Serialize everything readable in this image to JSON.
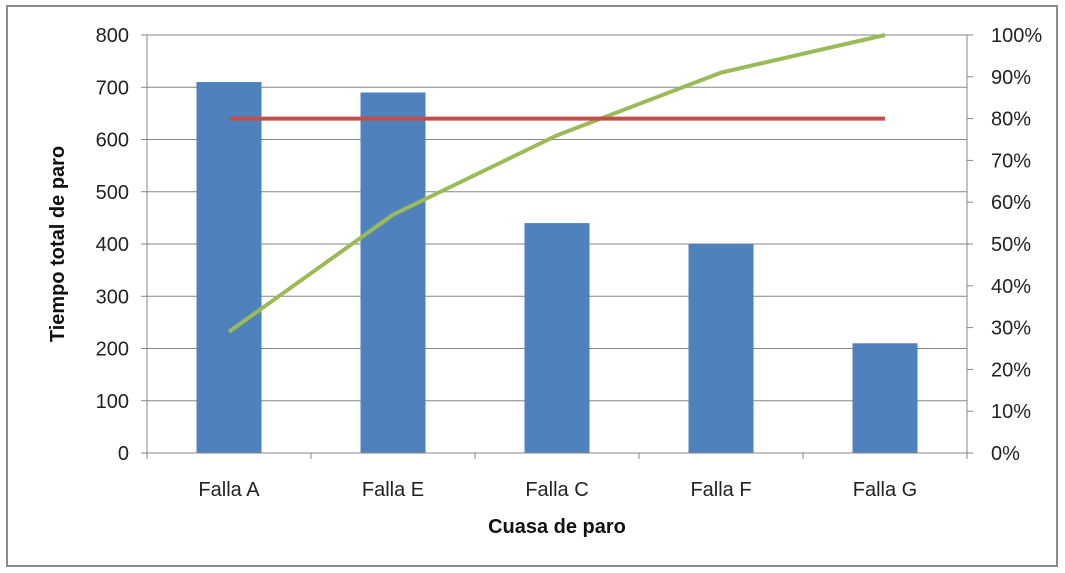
{
  "chart_data": {
    "type": "bar",
    "categories": [
      "Falla A",
      "Falla E",
      "Falla C",
      "Falla F",
      "Falla G"
    ],
    "series": [
      {
        "kind": "bar",
        "axis": "left",
        "values": [
          710,
          690,
          440,
          400,
          210
        ],
        "color": "#4f81bd"
      },
      {
        "kind": "line",
        "axis": "right",
        "values": [
          29,
          57,
          76,
          91,
          100
        ],
        "color": "#9bbb59"
      },
      {
        "kind": "line",
        "axis": "right",
        "values": [
          80,
          80,
          80,
          80,
          80
        ],
        "color": "#c0504d"
      }
    ],
    "xlabel": "Cuasa de paro",
    "ylabel": "Tiempo total de paro",
    "ylim": [
      0,
      800
    ],
    "y_ticks": [
      "0",
      "100",
      "200",
      "300",
      "400",
      "500",
      "600",
      "700",
      "800"
    ],
    "y2lim": [
      0,
      100
    ],
    "y2_ticks": [
      "0%",
      "10%",
      "20%",
      "30%",
      "40%",
      "50%",
      "60%",
      "70%",
      "80%",
      "90%",
      "100%"
    ],
    "grid": "horizontal",
    "legend": "none",
    "colors": {
      "grid": "#868686",
      "axis": "#868686",
      "frame": "#8c8c8c"
    }
  }
}
